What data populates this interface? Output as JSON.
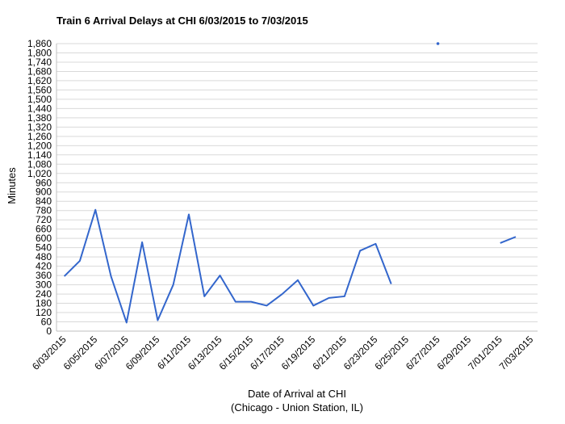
{
  "chart_data": {
    "type": "line",
    "title": "Train 6 Arrival Delays at CHI 6/03/2015 to 7/03/2015",
    "xlabel": "Date of Arrival at CHI",
    "xlabel_sub": "(Chicago - Union Station, IL)",
    "ylabel": "Minutes",
    "ylim": [
      0,
      1860
    ],
    "ytick_step": 60,
    "x_tick_labels": [
      "6/03/2015",
      "6/05/2015",
      "6/07/2015",
      "6/09/2015",
      "6/11/2015",
      "6/13/2015",
      "6/15/2015",
      "6/17/2015",
      "6/19/2015",
      "6/21/2015",
      "6/23/2015",
      "6/25/2015",
      "6/27/2015",
      "6/29/2015",
      "7/01/2015",
      "7/03/2015"
    ],
    "x": [
      "6/03/2015",
      "6/04/2015",
      "6/05/2015",
      "6/06/2015",
      "6/07/2015",
      "6/08/2015",
      "6/09/2015",
      "6/10/2015",
      "6/11/2015",
      "6/12/2015",
      "6/13/2015",
      "6/14/2015",
      "6/15/2015",
      "6/16/2015",
      "6/17/2015",
      "6/18/2015",
      "6/19/2015",
      "6/20/2015",
      "6/21/2015",
      "6/22/2015",
      "6/23/2015",
      "6/24/2015",
      "6/25/2015",
      "6/26/2015",
      "6/27/2015",
      "6/28/2015",
      "6/29/2015",
      "6/30/2015",
      "7/01/2015",
      "7/02/2015",
      "7/03/2015"
    ],
    "series": [
      {
        "values": [
          355,
          455,
          785,
          355,
          55,
          575,
          70,
          300,
          755,
          225,
          360,
          190,
          190,
          165,
          240,
          330,
          165,
          215,
          225,
          520,
          565,
          305,
          null,
          null,
          1860,
          null,
          null,
          null,
          570,
          610,
          null
        ]
      }
    ],
    "color": "#3366cc",
    "grid": true
  }
}
